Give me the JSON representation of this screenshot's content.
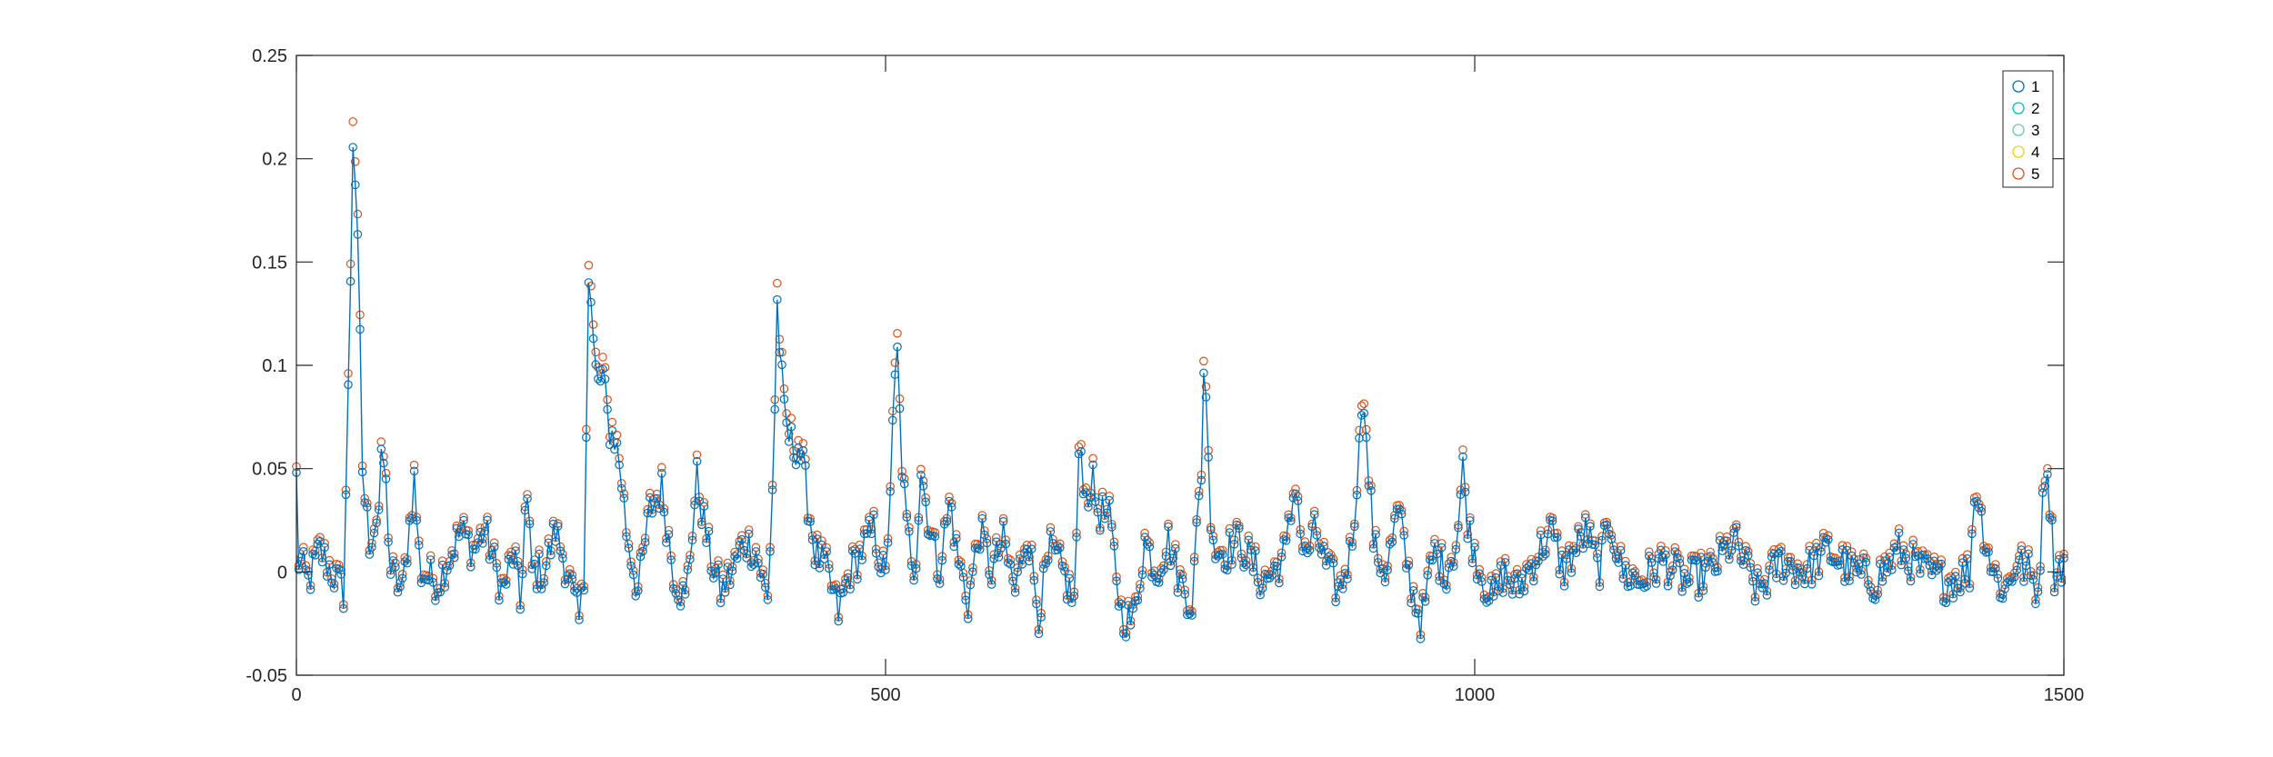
{
  "chart_data": {
    "type": "line",
    "title": "",
    "xlabel": "",
    "ylabel": "",
    "xlim": [
      0,
      1500
    ],
    "ylim": [
      -0.05,
      0.25
    ],
    "xticks": [
      0,
      500,
      1000,
      1500
    ],
    "xtick_labels": [
      "0",
      "500",
      "1000",
      "1500"
    ],
    "yticks": [
      -0.05,
      0,
      0.05,
      0.1,
      0.15,
      0.2,
      0.25
    ],
    "ytick_labels": [
      "-0.05",
      "0",
      "0.05",
      "0.1",
      "0.15",
      "0.2",
      "0.25"
    ],
    "grid": false,
    "legend": "top-right",
    "markers": "circle",
    "series": [
      {
        "name": "1",
        "color": "#0072BD"
      },
      {
        "name": "2",
        "color": "#00BFBF"
      },
      {
        "name": "3",
        "color": "#66CC99"
      },
      {
        "name": "4",
        "color": "#EDD11A"
      },
      {
        "name": "5",
        "color": "#D95319"
      }
    ],
    "peaks": [
      [
        0,
        0.045
      ],
      [
        2,
        0.005
      ],
      [
        10,
        -0.005
      ],
      [
        20,
        0.01
      ],
      [
        30,
        0.0
      ],
      [
        40,
        -0.01
      ],
      [
        45,
        0.11
      ],
      [
        48,
        0.21
      ],
      [
        50,
        0.19
      ],
      [
        52,
        0.155
      ],
      [
        54,
        0.11
      ],
      [
        56,
        0.05
      ],
      [
        58,
        0.035
      ],
      [
        62,
        0.015
      ],
      [
        70,
        0.03
      ],
      [
        73,
        0.06
      ],
      [
        76,
        0.04
      ],
      [
        80,
        0.0
      ],
      [
        90,
        -0.01
      ],
      [
        100,
        0.045
      ],
      [
        105,
        0.0
      ],
      [
        120,
        -0.005
      ],
      [
        140,
        0.02
      ],
      [
        150,
        0.01
      ],
      [
        160,
        0.02
      ],
      [
        175,
        -0.01
      ],
      [
        185,
        0.01
      ],
      [
        190,
        -0.018
      ],
      [
        195,
        0.04
      ],
      [
        200,
        0.0
      ],
      [
        210,
        0.0
      ],
      [
        220,
        0.02
      ],
      [
        230,
        0.0
      ],
      [
        240,
        -0.025
      ],
      [
        245,
        0.0
      ],
      [
        247,
        0.15
      ],
      [
        249,
        0.14
      ],
      [
        251,
        0.12
      ],
      [
        253,
        0.1
      ],
      [
        256,
        0.09
      ],
      [
        260,
        0.095
      ],
      [
        265,
        0.07
      ],
      [
        270,
        0.065
      ],
      [
        275,
        0.05
      ],
      [
        280,
        0.02
      ],
      [
        290,
        -0.01
      ],
      [
        300,
        0.03
      ],
      [
        310,
        0.04
      ],
      [
        320,
        0.0
      ],
      [
        330,
        -0.015
      ],
      [
        340,
        0.045
      ],
      [
        350,
        0.01
      ],
      [
        360,
        -0.01
      ],
      [
        370,
        0.0
      ],
      [
        380,
        0.015
      ],
      [
        390,
        0.01
      ],
      [
        400,
        -0.015
      ],
      [
        405,
        0.055
      ],
      [
        408,
        0.13
      ],
      [
        411,
        0.1
      ],
      [
        414,
        0.075
      ],
      [
        418,
        0.065
      ],
      [
        422,
        0.06
      ],
      [
        426,
        0.062
      ],
      [
        430,
        0.05
      ],
      [
        435,
        0.03
      ],
      [
        440,
        0.01
      ],
      [
        450,
        0.0
      ],
      [
        460,
        -0.02
      ],
      [
        470,
        0.0
      ],
      [
        480,
        0.01
      ],
      [
        490,
        0.02
      ],
      [
        500,
        -0.005
      ],
      [
        508,
        0.09
      ],
      [
        510,
        0.105
      ],
      [
        513,
        0.06
      ],
      [
        518,
        0.02
      ],
      [
        525,
        0.0
      ],
      [
        530,
        0.05
      ],
      [
        535,
        0.03
      ],
      [
        545,
        0.0
      ],
      [
        555,
        0.035
      ],
      [
        560,
        0.01
      ],
      [
        570,
        -0.015
      ],
      [
        580,
        0.02
      ],
      [
        590,
        0.0
      ],
      [
        600,
        0.015
      ],
      [
        610,
        -0.01
      ],
      [
        620,
        0.02
      ],
      [
        630,
        -0.02
      ],
      [
        640,
        0.01
      ],
      [
        650,
        0.0
      ],
      [
        660,
        -0.015
      ],
      [
        665,
        0.065
      ],
      [
        670,
        0.035
      ],
      [
        675,
        0.045
      ],
      [
        680,
        0.03
      ],
      [
        690,
        0.025
      ],
      [
        700,
        -0.02
      ],
      [
        710,
        -0.025
      ],
      [
        720,
        0.015
      ],
      [
        730,
        0.0
      ],
      [
        740,
        0.015
      ],
      [
        750,
        -0.005
      ],
      [
        760,
        -0.015
      ],
      [
        768,
        0.05
      ],
      [
        771,
        0.12
      ],
      [
        773,
        0.06
      ],
      [
        776,
        0.03
      ],
      [
        780,
        0.01
      ],
      [
        790,
        0.01
      ],
      [
        800,
        0.015
      ],
      [
        810,
        0.005
      ],
      [
        820,
        -0.005
      ],
      [
        830,
        0.0
      ],
      [
        840,
        0.01
      ],
      [
        848,
        0.045
      ],
      [
        855,
        0.005
      ],
      [
        865,
        0.02
      ],
      [
        875,
        0.0
      ],
      [
        885,
        -0.01
      ],
      [
        895,
        0.01
      ],
      [
        903,
        0.065
      ],
      [
        905,
        0.1
      ],
      [
        908,
        0.06
      ],
      [
        915,
        0.01
      ],
      [
        925,
        0.0
      ],
      [
        935,
        0.03
      ],
      [
        945,
        -0.005
      ],
      [
        955,
        -0.025
      ],
      [
        965,
        0.01
      ],
      [
        975,
        0.0
      ],
      [
        985,
        0.015
      ],
      [
        990,
        0.05
      ],
      [
        995,
        0.02
      ],
      [
        1005,
        0.0
      ],
      [
        1015,
        -0.015
      ],
      [
        1025,
        0.0
      ],
      [
        1035,
        -0.01
      ],
      [
        1045,
        0.0
      ],
      [
        1055,
        0.01
      ],
      [
        1065,
        0.02
      ],
      [
        1075,
        0.0
      ],
      [
        1085,
        0.01
      ],
      [
        1095,
        0.02
      ],
      [
        1105,
        0.0
      ],
      [
        1115,
        0.025
      ],
      [
        1125,
        0.0
      ],
      [
        1140,
        -0.005
      ],
      [
        1160,
        0.005
      ],
      [
        1180,
        -0.005
      ],
      [
        1200,
        0.0
      ],
      [
        1220,
        0.015
      ],
      [
        1240,
        -0.01
      ],
      [
        1260,
        0.005
      ],
      [
        1280,
        0.0
      ],
      [
        1300,
        0.01
      ],
      [
        1320,
        0.0
      ],
      [
        1340,
        -0.005
      ],
      [
        1360,
        0.01
      ],
      [
        1380,
        0.0
      ],
      [
        1400,
        -0.005
      ],
      [
        1420,
        0.0
      ],
      [
        1425,
        0.045
      ],
      [
        1430,
        0.025
      ],
      [
        1440,
        0.0
      ],
      [
        1450,
        -0.01
      ],
      [
        1460,
        0.005
      ],
      [
        1470,
        0.0
      ],
      [
        1478,
        -0.01
      ],
      [
        1485,
        0.06
      ],
      [
        1488,
        0.035
      ],
      [
        1492,
        0.0
      ],
      [
        1500,
        0.005
      ]
    ]
  }
}
